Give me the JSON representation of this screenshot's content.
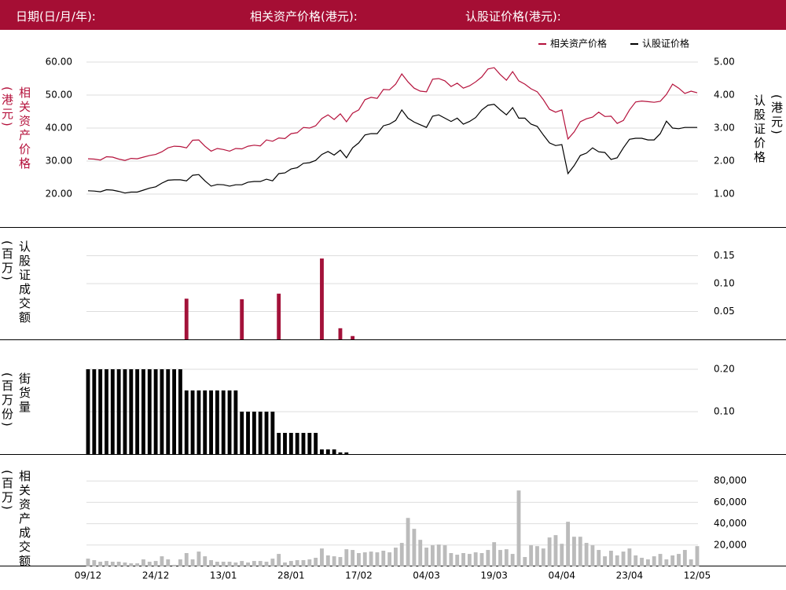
{
  "header": {
    "date_label": "日期(日/月/年):",
    "underlying_label": "相关资产价格(港元):",
    "warrant_label": "认股证价格(港元):"
  },
  "chart_data": [
    {
      "type": "line",
      "y_label": "相关资产价格(港元)",
      "y2_label": "认股证价格(港元)",
      "legend": "upper right",
      "grid": true,
      "ylim": [
        20,
        60
      ],
      "yticks": [
        {
          "value": 20,
          "label": "20.00"
        },
        {
          "value": 30,
          "label": "30.00"
        },
        {
          "value": 40,
          "label": "40.00"
        },
        {
          "value": 50,
          "label": "50.00"
        },
        {
          "value": 60,
          "label": "60.00"
        }
      ],
      "y2lim": [
        1,
        5
      ],
      "y2ticks": [
        {
          "value": 1,
          "label": "1.00"
        },
        {
          "value": 2,
          "label": "2.00"
        },
        {
          "value": 3,
          "label": "3.00"
        },
        {
          "value": 4,
          "label": "4.00"
        },
        {
          "value": 5,
          "label": "5.00"
        }
      ],
      "series": [
        {
          "name": "相关资产价格",
          "color": "#b5123c",
          "values": [
            30.7,
            30.6,
            30.3,
            31.3,
            31.2,
            30.6,
            30.2,
            30.8,
            30.7,
            31.2,
            31.7,
            32.0,
            32.8,
            34.0,
            34.5,
            34.4,
            34.0,
            36.3,
            36.4,
            34.5,
            33.0,
            33.8,
            33.5,
            33.0,
            33.8,
            33.7,
            34.5,
            34.8,
            34.6,
            36.4,
            36.0,
            37.0,
            36.8,
            38.3,
            38.6,
            40.2,
            40.0,
            40.7,
            42.9,
            44.0,
            42.6,
            44.3,
            41.9,
            44.5,
            45.5,
            48.6,
            49.3,
            49.0,
            51.7,
            51.6,
            53.3,
            56.4,
            54.0,
            52.1,
            51.2,
            51.0,
            54.8,
            55.0,
            54.3,
            52.6,
            53.6,
            52.1,
            52.8,
            54.0,
            55.5,
            57.9,
            58.3,
            56.2,
            54.5,
            57.1,
            54.3,
            53.3,
            51.9,
            51.0,
            48.6,
            45.7,
            44.8,
            45.5,
            36.7,
            38.8,
            41.9,
            42.8,
            43.3,
            44.8,
            43.5,
            43.6,
            41.4,
            42.3,
            45.5,
            47.9,
            48.2,
            48.0,
            47.8,
            48.1,
            50.2,
            53.3,
            52.1,
            50.5,
            51.2,
            50.7
          ]
        },
        {
          "name": "认股证价格",
          "color": "#000000",
          "axis": "y2",
          "values": [
            1.1,
            1.09,
            1.07,
            1.13,
            1.12,
            1.08,
            1.03,
            1.06,
            1.06,
            1.12,
            1.18,
            1.22,
            1.33,
            1.42,
            1.43,
            1.43,
            1.4,
            1.57,
            1.59,
            1.4,
            1.24,
            1.29,
            1.28,
            1.24,
            1.28,
            1.28,
            1.36,
            1.38,
            1.38,
            1.45,
            1.4,
            1.62,
            1.64,
            1.76,
            1.8,
            1.93,
            1.95,
            2.02,
            2.2,
            2.29,
            2.18,
            2.33,
            2.1,
            2.4,
            2.55,
            2.79,
            2.83,
            2.83,
            3.07,
            3.12,
            3.23,
            3.55,
            3.3,
            3.18,
            3.1,
            3.02,
            3.36,
            3.4,
            3.3,
            3.2,
            3.3,
            3.12,
            3.2,
            3.32,
            3.55,
            3.69,
            3.72,
            3.55,
            3.4,
            3.62,
            3.3,
            3.3,
            3.12,
            3.05,
            2.79,
            2.55,
            2.47,
            2.5,
            1.62,
            1.86,
            2.17,
            2.24,
            2.4,
            2.28,
            2.26,
            2.05,
            2.1,
            2.4,
            2.66,
            2.69,
            2.69,
            2.64,
            2.64,
            2.83,
            3.21,
            3.0,
            2.98,
            3.02,
            3.02,
            3.02
          ]
        }
      ]
    },
    {
      "type": "bar",
      "y_label": "认股证成交额(百万)",
      "color": "#a3123a",
      "grid": true,
      "ylim": [
        0,
        0.2
      ],
      "yticks": [
        0.05,
        {
          "value": 0.1,
          "label": "0.10"
        },
        0.15
      ],
      "values": [
        0,
        0,
        0,
        0,
        0,
        0,
        0,
        0,
        0,
        0,
        0,
        0,
        0,
        0,
        0,
        0,
        0.073,
        0,
        0,
        0,
        0,
        0,
        0,
        0,
        0,
        0.072,
        0,
        0,
        0,
        0,
        0,
        0.082,
        0,
        0,
        0,
        0,
        0,
        0,
        0.145,
        0,
        0,
        0.02,
        0,
        0.006,
        0,
        0,
        0,
        0,
        0,
        0,
        0,
        0,
        0,
        0,
        0,
        0,
        0,
        0,
        0,
        0,
        0,
        0,
        0,
        0,
        0,
        0,
        0,
        0,
        0,
        0,
        0,
        0,
        0,
        0,
        0,
        0,
        0,
        0,
        0,
        0,
        0,
        0,
        0,
        0,
        0,
        0,
        0,
        0,
        0,
        0,
        0,
        0,
        0,
        0,
        0,
        0,
        0,
        0,
        0,
        0
      ]
    },
    {
      "type": "bar",
      "y_label": "街货量(百万份)",
      "color": "#000000",
      "grid": true,
      "ylim": [
        0,
        0.25
      ],
      "yticks": [
        {
          "value": 0.1,
          "label": "0.10"
        },
        {
          "value": 0.2,
          "label": "0.20"
        }
      ],
      "values": [
        0.2,
        0.2,
        0.2,
        0.2,
        0.2,
        0.2,
        0.2,
        0.2,
        0.2,
        0.2,
        0.2,
        0.2,
        0.2,
        0.2,
        0.2,
        0.2,
        0.15,
        0.15,
        0.15,
        0.15,
        0.15,
        0.15,
        0.15,
        0.15,
        0.15,
        0.1,
        0.1,
        0.1,
        0.1,
        0.1,
        0.1,
        0.05,
        0.05,
        0.05,
        0.05,
        0.05,
        0.05,
        0.05,
        0.011,
        0.011,
        0.011,
        0.004,
        0.004,
        0,
        0,
        0,
        0,
        0,
        0,
        0,
        0,
        0,
        0,
        0,
        0,
        0,
        0,
        0,
        0,
        0,
        0,
        0,
        0,
        0,
        0,
        0,
        0,
        0,
        0,
        0,
        0,
        0,
        0,
        0,
        0,
        0,
        0,
        0,
        0,
        0,
        0,
        0,
        0,
        0,
        0,
        0,
        0,
        0,
        0,
        0,
        0,
        0,
        0,
        0,
        0,
        0,
        0,
        0,
        0,
        0
      ]
    },
    {
      "type": "bar",
      "y_label": "相关资产成交额(百万)",
      "color": "#bbbbbb",
      "grid": true,
      "ylim": [
        0,
        100000
      ],
      "yticks": [
        {
          "value": 20000,
          "label": "20,000"
        },
        {
          "value": 40000,
          "label": "40,000"
        },
        {
          "value": 60000,
          "label": "60,000"
        },
        {
          "value": 80000,
          "label": "80,000"
        }
      ],
      "categories": [
        "09/12",
        null,
        null,
        null,
        null,
        null,
        null,
        null,
        null,
        null,
        null,
        "24/12",
        null,
        null,
        null,
        null,
        null,
        null,
        null,
        null,
        null,
        null,
        "13/01",
        null,
        null,
        null,
        null,
        null,
        null,
        null,
        null,
        null,
        null,
        "28/01",
        null,
        null,
        null,
        null,
        null,
        null,
        null,
        null,
        null,
        null,
        "17/02",
        null,
        null,
        null,
        null,
        null,
        null,
        null,
        null,
        null,
        null,
        "04/03",
        null,
        null,
        null,
        null,
        null,
        null,
        null,
        null,
        null,
        null,
        "19/03",
        null,
        null,
        null,
        null,
        null,
        null,
        null,
        null,
        null,
        null,
        "04/04",
        null,
        null,
        null,
        null,
        null,
        null,
        null,
        null,
        null,
        null,
        "23/04",
        null,
        null,
        null,
        null,
        null,
        null,
        null,
        null,
        null,
        null,
        "12/05"
      ],
      "values": [
        7300,
        5900,
        4400,
        5100,
        4400,
        4400,
        3700,
        2900,
        2900,
        6600,
        4400,
        5100,
        9500,
        6600,
        1500,
        6600,
        12500,
        6600,
        13900,
        9500,
        5900,
        4400,
        4400,
        4400,
        3700,
        5100,
        3700,
        5100,
        5100,
        4400,
        7300,
        11700,
        3700,
        5100,
        5900,
        5900,
        6600,
        8100,
        16800,
        10300,
        9500,
        8800,
        16100,
        15400,
        12500,
        13200,
        13900,
        13200,
        14700,
        13200,
        17600,
        22000,
        45400,
        35200,
        24900,
        17600,
        19800,
        20500,
        19800,
        12500,
        11000,
        12500,
        11700,
        13200,
        12500,
        15400,
        22700,
        15400,
        16100,
        11700,
        71100,
        8800,
        19800,
        19000,
        16800,
        27100,
        29300,
        21200,
        41800,
        27800,
        27800,
        22000,
        19800,
        15400,
        9500,
        14700,
        10300,
        13900,
        16800,
        10300,
        8100,
        6600,
        9500,
        11700,
        6600,
        10300,
        11700,
        15400,
        6600,
        19000
      ]
    }
  ]
}
